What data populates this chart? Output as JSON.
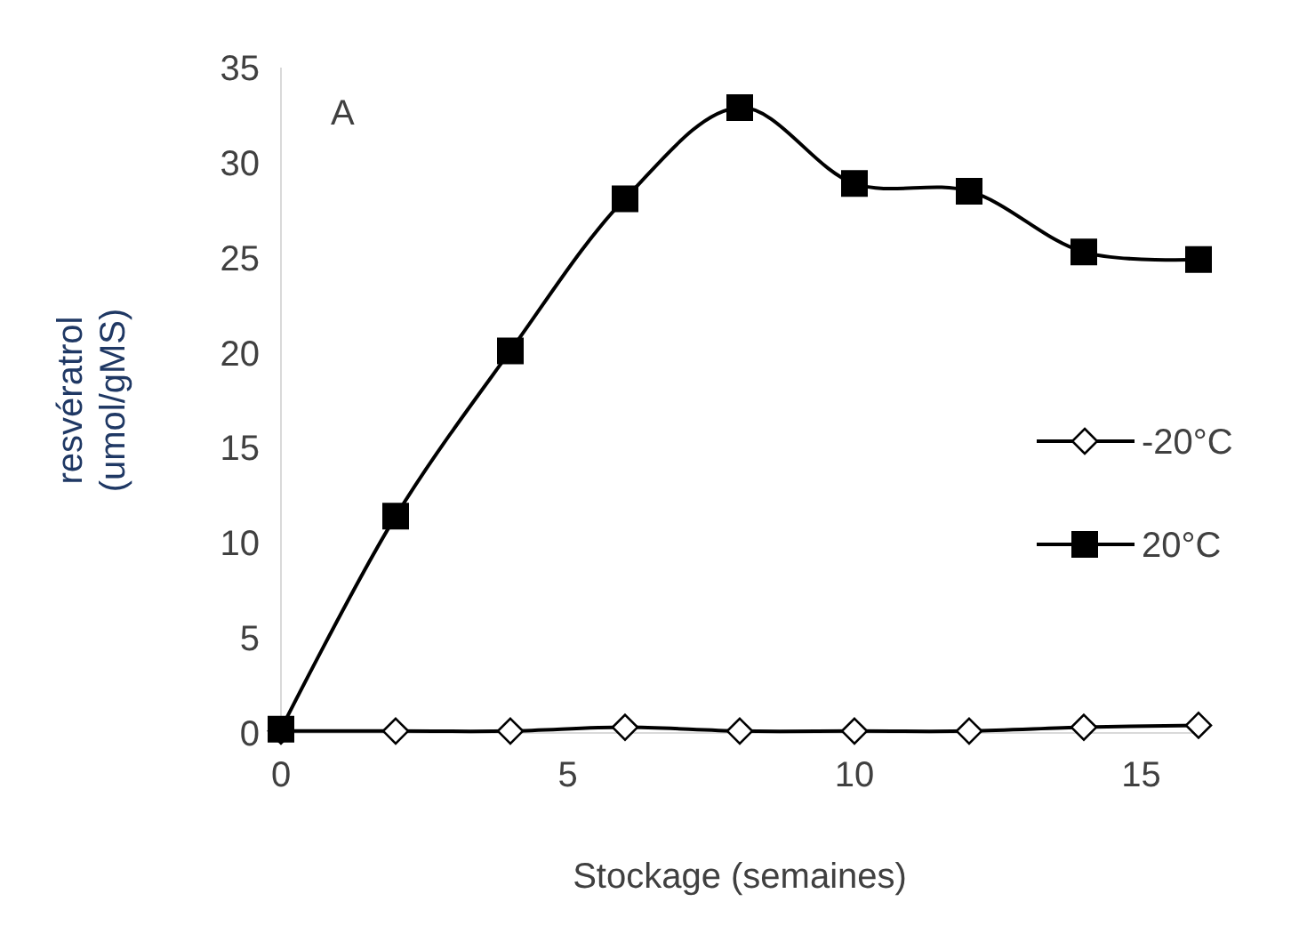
{
  "chart_data": {
    "type": "line",
    "xlabel": "Stockage (semaines)",
    "ylabel": "resvératrol\n(umol/gMS)",
    "annotations": [
      "A"
    ],
    "x": [
      0,
      2,
      4,
      6,
      8,
      10,
      12,
      14,
      16
    ],
    "xlim": [
      0,
      16
    ],
    "xticks": [
      0,
      5,
      10,
      15
    ],
    "ylim": [
      0,
      35
    ],
    "yticks": [
      0,
      5,
      10,
      15,
      20,
      25,
      30,
      35
    ],
    "grid": false,
    "legend": "right",
    "line_style": "solid",
    "series": [
      {
        "name": "-20°C",
        "color": "#000000",
        "marker": "diamond",
        "values": [
          0.1,
          0.1,
          0.1,
          0.3,
          0.1,
          0.1,
          0.1,
          0.3,
          0.4
        ]
      },
      {
        "name": "20°C",
        "color": "#000000",
        "marker": "square",
        "values": [
          0.2,
          11.4,
          20.1,
          28.1,
          32.9,
          28.9,
          28.5,
          25.3,
          24.9
        ]
      }
    ]
  }
}
